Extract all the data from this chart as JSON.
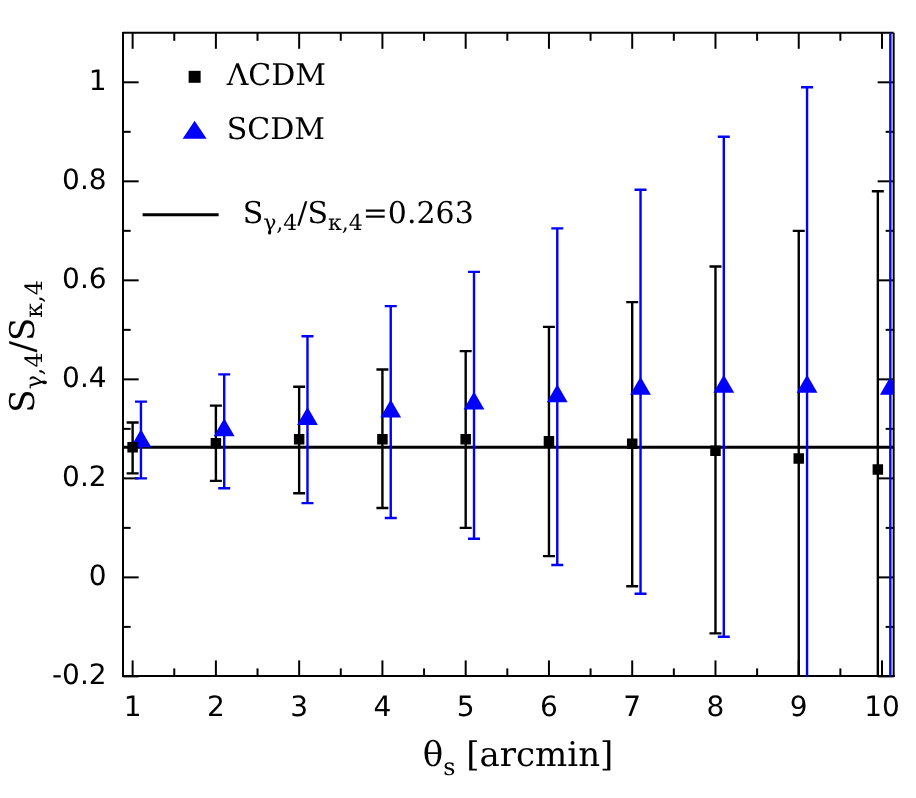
{
  "chart_data": {
    "type": "scatter",
    "xlabel": "θ$_{s}$ [arcmin]",
    "ylabel": "S$_{γ,4}$/S$_{κ,4}$",
    "xlim": [
      0.88,
      10.14
    ],
    "ylim": [
      -0.2,
      1.1
    ],
    "xticks": [
      1,
      {
        "value": 1.5,
        "label": null
      },
      2,
      {
        "value": 2.5,
        "label": null
      },
      3,
      {
        "value": 3.5,
        "label": null
      },
      4,
      {
        "value": 4.5,
        "label": null
      },
      5,
      {
        "value": 5.5,
        "label": null
      },
      6,
      {
        "value": 6.5,
        "label": null
      },
      7,
      {
        "value": 7.5,
        "label": null
      },
      8,
      {
        "value": 8.5,
        "label": null
      },
      9,
      {
        "value": 9.5,
        "label": null
      },
      10
    ],
    "yticks": [
      -0.2,
      {
        "value": -0.1,
        "label": null
      },
      0,
      {
        "value": 0.1,
        "label": null
      },
      0.2,
      {
        "value": 0.3,
        "label": null
      },
      0.4,
      {
        "value": 0.5,
        "label": null
      },
      0.6,
      {
        "value": 0.7,
        "label": null
      },
      0.8,
      {
        "value": 0.9,
        "label": null
      },
      1
    ],
    "legend": "top left",
    "grid": false,
    "series": [
      {
        "name": "ΛCDM",
        "color": "#000000",
        "marker": "square",
        "x": [
          1,
          2,
          3,
          4,
          5,
          6,
          7,
          8,
          9,
          9.95
        ],
        "values": [
          0.263,
          0.271,
          0.279,
          0.279,
          0.279,
          0.275,
          0.27,
          0.256,
          0.24,
          0.218
        ],
        "errors": [
          [
            0.21,
            0.313
          ],
          [
            0.195,
            0.347
          ],
          [
            0.17,
            0.385
          ],
          [
            0.14,
            0.42
          ],
          [
            0.1,
            0.457
          ],
          [
            0.043,
            0.506
          ],
          [
            -0.018,
            0.556
          ],
          [
            -0.113,
            0.628
          ],
          [
            -0.2,
            0.7
          ],
          [
            -0.2,
            0.78
          ]
        ]
      },
      {
        "name": "SCDM",
        "color": "#0000ff",
        "marker": "triangle",
        "x": [
          1.1,
          2.1,
          3.1,
          4.1,
          5.1,
          6.1,
          7.1,
          8.1,
          9.1,
          10.1
        ],
        "values": [
          0.275,
          0.297,
          0.32,
          0.335,
          0.351,
          0.366,
          0.381,
          0.385,
          0.385,
          0.381
        ],
        "errors": [
          [
            0.2,
            0.355
          ],
          [
            0.18,
            0.41
          ],
          [
            0.15,
            0.487
          ],
          [
            0.12,
            0.548
          ],
          [
            0.078,
            0.617
          ],
          [
            0.025,
            0.705
          ],
          [
            -0.033,
            0.783
          ],
          [
            -0.12,
            0.89
          ],
          [
            -0.2,
            0.99
          ],
          [
            -0.2,
            1.1
          ]
        ]
      }
    ],
    "ref_lines": [
      {
        "axis": "y",
        "value": 0.263,
        "label": "S$_{γ,4}$/S$_{κ,4}$=0.263",
        "color": "#000000",
        "line_style": "solid"
      }
    ]
  }
}
